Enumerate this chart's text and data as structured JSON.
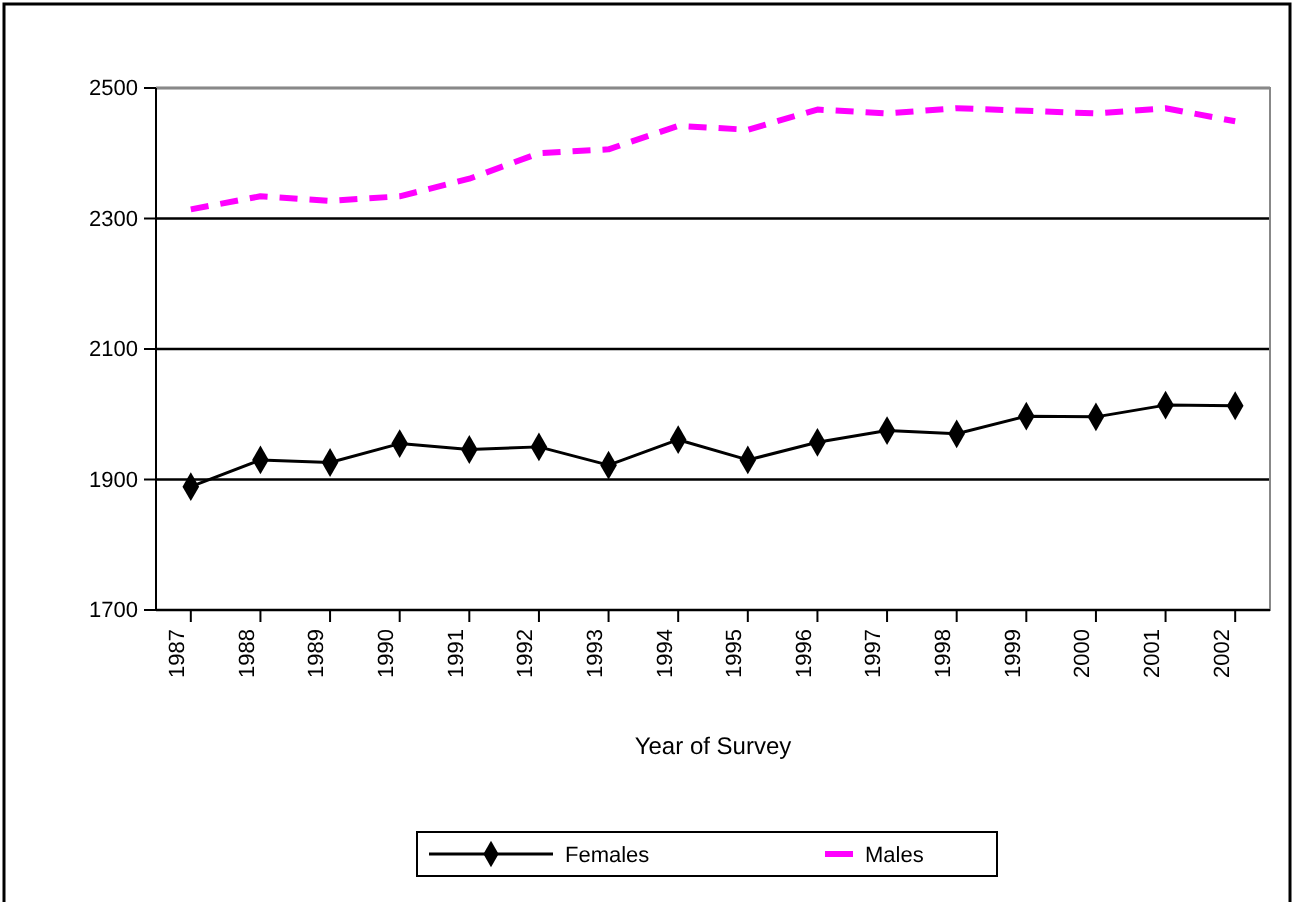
{
  "chart_data": {
    "type": "line",
    "xlabel": "Year of Survey",
    "categories": [
      "1987",
      "1988",
      "1989",
      "1990",
      "1991",
      "1992",
      "1993",
      "1994",
      "1995",
      "1996",
      "1997",
      "1998",
      "1999",
      "2000",
      "2001",
      "2002"
    ],
    "series": [
      {
        "name": "Females",
        "color": "#000000",
        "marker": "diamond",
        "line_style": "solid",
        "values": [
          1889,
          1930,
          1926,
          1955,
          1946,
          1950,
          1922,
          1961,
          1930,
          1957,
          1975,
          1970,
          1997,
          1996,
          2014,
          2013
        ]
      },
      {
        "name": "Males",
        "color": "#ff00ff",
        "marker": "none",
        "line_style": "dashed",
        "values": [
          2314,
          2334,
          2327,
          2334,
          2361,
          2400,
          2406,
          2442,
          2436,
          2467,
          2461,
          2469,
          2465,
          2461,
          2469,
          2449
        ]
      }
    ],
    "ylim": [
      1700,
      2500
    ],
    "yticks": [
      1700,
      1900,
      2100,
      2300,
      2500
    ],
    "grid": "y",
    "legend": "bottom"
  }
}
